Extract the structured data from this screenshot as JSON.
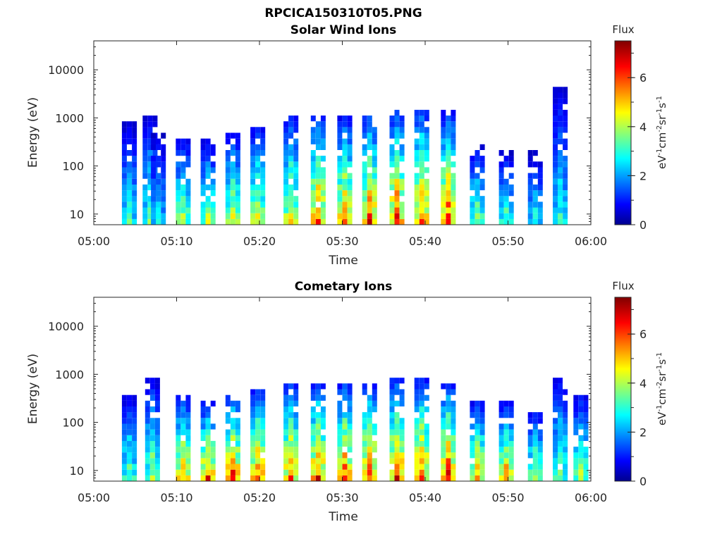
{
  "figure_title": "RPCICA150310T05.PNG",
  "chart_data": [
    {
      "type": "heatmap",
      "title": "Solar Wind Ions",
      "xlabel": "Time",
      "ylabel": "Energy (eV)",
      "x_ticks": [
        "05:00",
        "05:10",
        "05:20",
        "05:30",
        "05:40",
        "05:50",
        "06:00"
      ],
      "xlim": [
        "05:00",
        "06:00"
      ],
      "y_scale": "log",
      "y_ticks": [
        "10",
        "100",
        "1000",
        "10000"
      ],
      "ylim": [
        6,
        40000
      ],
      "colorbar": {
        "title": "Flux",
        "label": "eV-1cm-2sr-1s-1",
        "ticks": [
          "0",
          "2",
          "4",
          "6"
        ],
        "range": [
          0,
          7.5
        ],
        "colormap": "jet"
      },
      "events": [
        {
          "time": 4,
          "emin": 7,
          "emax": 600,
          "peak": 3.5
        },
        {
          "time": 6.5,
          "emin": 7,
          "emax": 900,
          "peak": 3.8
        },
        {
          "time": 7.5,
          "emin": 7,
          "emax": 400,
          "peak": 3.0
        },
        {
          "time": 10.5,
          "emin": 7,
          "emax": 300,
          "peak": 4.6
        },
        {
          "time": 13.5,
          "emin": 7,
          "emax": 250,
          "peak": 4.4
        },
        {
          "time": 16.5,
          "emin": 8,
          "emax": 400,
          "peak": 4.8
        },
        {
          "time": 19.5,
          "emin": 8,
          "emax": 500,
          "peak": 4.9
        },
        {
          "time": 23.5,
          "emin": 8,
          "emax": 900,
          "peak": 5.3
        },
        {
          "time": 26.8,
          "emin": 8,
          "emax": 900,
          "peak": 6.2
        },
        {
          "time": 30,
          "emin": 8,
          "emax": 800,
          "peak": 6.0
        },
        {
          "time": 33,
          "emin": 8,
          "emax": 900,
          "peak": 6.4
        },
        {
          "time": 36.3,
          "emin": 8,
          "emax": 1000,
          "peak": 6.6
        },
        {
          "time": 39.3,
          "emin": 8,
          "emax": 1200,
          "peak": 6.3
        },
        {
          "time": 42.5,
          "emin": 8,
          "emax": 1000,
          "peak": 6.4
        },
        {
          "time": 46,
          "emin": 7,
          "emax": 200,
          "peak": 4.2
        },
        {
          "time": 49.5,
          "emin": 7,
          "emax": 150,
          "peak": 3.8
        },
        {
          "time": 53,
          "emin": 7,
          "emax": 150,
          "peak": 3.2
        },
        {
          "time": 56,
          "emin": 7,
          "emax": 3000,
          "peak": 3.4
        }
      ]
    },
    {
      "type": "heatmap",
      "title": "Cometary Ions",
      "xlabel": "Time",
      "ylabel": "Energy (eV)",
      "x_ticks": [
        "05:00",
        "05:10",
        "05:20",
        "05:30",
        "05:40",
        "05:50",
        "06:00"
      ],
      "xlim": [
        "05:00",
        "06:00"
      ],
      "y_scale": "log",
      "y_ticks": [
        "10",
        "100",
        "1000",
        "10000"
      ],
      "ylim": [
        6,
        40000
      ],
      "colorbar": {
        "title": "Flux",
        "label": "eV-1cm-2sr-1s-1",
        "ticks": [
          "0",
          "2",
          "4",
          "6"
        ],
        "range": [
          0,
          7.5
        ],
        "colormap": "jet"
      },
      "events": [
        {
          "time": 4,
          "emin": 7,
          "emax": 300,
          "peak": 4.0
        },
        {
          "time": 6.8,
          "emin": 7,
          "emax": 600,
          "peak": 4.4
        },
        {
          "time": 10.5,
          "emin": 7,
          "emax": 250,
          "peak": 6.2
        },
        {
          "time": 13.5,
          "emin": 7,
          "emax": 200,
          "peak": 6.4
        },
        {
          "time": 16.5,
          "emin": 7,
          "emax": 300,
          "peak": 6.6
        },
        {
          "time": 19.5,
          "emin": 7,
          "emax": 400,
          "peak": 6.4
        },
        {
          "time": 23.5,
          "emin": 7,
          "emax": 500,
          "peak": 6.3
        },
        {
          "time": 26.8,
          "emin": 7,
          "emax": 500,
          "peak": 6.6
        },
        {
          "time": 30,
          "emin": 7,
          "emax": 500,
          "peak": 6.6
        },
        {
          "time": 33,
          "emin": 7,
          "emax": 500,
          "peak": 6.8
        },
        {
          "time": 36.3,
          "emin": 7,
          "emax": 600,
          "peak": 6.8
        },
        {
          "time": 39.3,
          "emin": 7,
          "emax": 600,
          "peak": 6.6
        },
        {
          "time": 42.5,
          "emin": 7,
          "emax": 500,
          "peak": 6.8
        },
        {
          "time": 46,
          "emin": 7,
          "emax": 200,
          "peak": 6.0
        },
        {
          "time": 49.5,
          "emin": 7,
          "emax": 200,
          "peak": 5.8
        },
        {
          "time": 53,
          "emin": 7,
          "emax": 150,
          "peak": 4.6
        },
        {
          "time": 56,
          "emin": 7,
          "emax": 600,
          "peak": 4.2
        },
        {
          "time": 58.5,
          "emin": 7,
          "emax": 300,
          "peak": 4.4
        }
      ]
    }
  ]
}
